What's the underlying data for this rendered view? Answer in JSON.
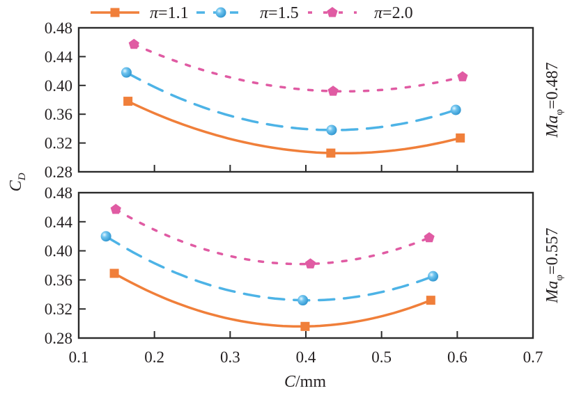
{
  "chart_data": {
    "type": "line",
    "xlabel_italic": "C",
    "xlabel_rest": "/mm",
    "ylabel_main": "C",
    "ylabel_sub": "D",
    "xlim": [
      0.1,
      0.7
    ],
    "ylim": [
      0.28,
      0.48
    ],
    "x_ticks": [
      "0.1",
      "0.2",
      "0.3",
      "0.4",
      "0.5",
      "0.6",
      "0.7"
    ],
    "x_tick_values": [
      0.1,
      0.2,
      0.3,
      0.4,
      0.5,
      0.6,
      0.7
    ],
    "y_ticks": [
      "0.28",
      "0.32",
      "0.36",
      "0.40",
      "0.44",
      "0.48"
    ],
    "y_tick_values": [
      0.28,
      0.32,
      0.36,
      0.4,
      0.44,
      0.48
    ],
    "legend": {
      "placement": "top",
      "entries": [
        {
          "label": "π=1.1",
          "symbol": "π",
          "value": "=1.1",
          "color": "#F07F3A",
          "marker": "square",
          "line": "solid"
        },
        {
          "label": "π=1.5",
          "symbol": "π",
          "value": "=1.5",
          "color": "#4DB3E6",
          "marker": "circle",
          "line": "dashed"
        },
        {
          "label": "π=2.0",
          "symbol": "π",
          "value": "=2.0",
          "color": "#E05BA3",
          "marker": "pentagon",
          "line": "dotted"
        }
      ]
    },
    "panels": [
      {
        "label_main": "Ma",
        "label_sub": "φ",
        "label_value": "=0.487",
        "series": [
          {
            "name": "π=1.1",
            "x": [
              0.165,
              0.433,
              0.604
            ],
            "y": [
              0.378,
              0.306,
              0.327
            ]
          },
          {
            "name": "π=1.5",
            "x": [
              0.163,
              0.434,
              0.598
            ],
            "y": [
              0.418,
              0.338,
              0.366
            ]
          },
          {
            "name": "π=2.0",
            "x": [
              0.173,
              0.436,
              0.607
            ],
            "y": [
              0.457,
              0.392,
              0.412
            ]
          }
        ]
      },
      {
        "label_main": "Ma",
        "label_sub": "φ",
        "label_value": "=0.557",
        "series": [
          {
            "name": "π=1.1",
            "x": [
              0.147,
              0.399,
              0.565
            ],
            "y": [
              0.369,
              0.296,
              0.332
            ]
          },
          {
            "name": "π=1.5",
            "x": [
              0.136,
              0.396,
              0.568
            ],
            "y": [
              0.42,
              0.332,
              0.365
            ]
          },
          {
            "name": "π=2.0",
            "x": [
              0.149,
              0.406,
              0.563
            ],
            "y": [
              0.457,
              0.382,
              0.418
            ]
          }
        ]
      }
    ]
  }
}
